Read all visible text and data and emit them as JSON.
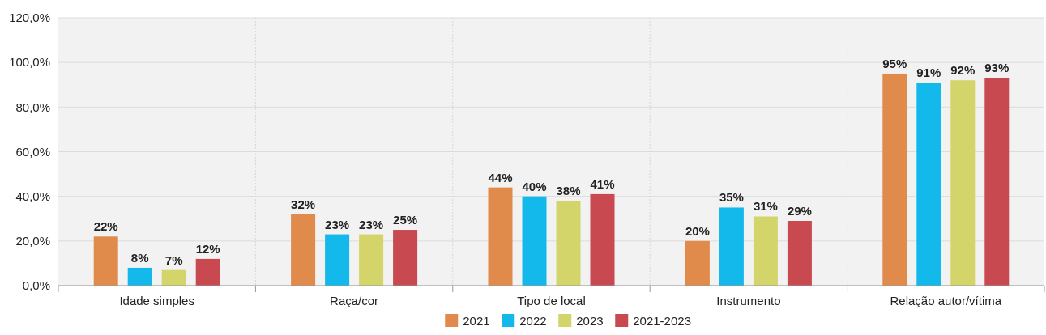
{
  "chart_data": {
    "type": "bar",
    "categories": [
      "Idade simples",
      "Raça/cor",
      "Tipo de local",
      "Instrumento",
      "Relação autor/vítima"
    ],
    "series": [
      {
        "name": "2021",
        "color": "#e08a4c",
        "values": [
          22,
          32,
          44,
          20,
          95
        ],
        "value_labels": [
          "22%",
          "32%",
          "44%",
          "20%",
          "95%"
        ]
      },
      {
        "name": "2022",
        "color": "#13b9ea",
        "values": [
          8,
          23,
          40,
          35,
          91
        ],
        "value_labels": [
          "8%",
          "23%",
          "40%",
          "35%",
          "91%"
        ]
      },
      {
        "name": "2023",
        "color": "#d3d46a",
        "values": [
          7,
          23,
          38,
          31,
          92
        ],
        "value_labels": [
          "7%",
          "23%",
          "38%",
          "31%",
          "92%"
        ]
      },
      {
        "name": "2021-2023",
        "color": "#c8494f",
        "values": [
          12,
          25,
          41,
          29,
          93
        ],
        "value_labels": [
          "12%",
          "25%",
          "41%",
          "29%",
          "93%"
        ]
      }
    ],
    "ylim": [
      0,
      120
    ],
    "yticks": [
      {
        "value": 0,
        "label": "0,0%"
      },
      {
        "value": 20,
        "label": "20,0%"
      },
      {
        "value": 40,
        "label": "40,0%"
      },
      {
        "value": 60,
        "label": "60,0%"
      },
      {
        "value": 80,
        "label": "80,0%"
      },
      {
        "value": 100,
        "label": "100,0%"
      },
      {
        "value": 120,
        "label": "120,0%"
      }
    ],
    "grid": true,
    "legend": "bottom"
  }
}
